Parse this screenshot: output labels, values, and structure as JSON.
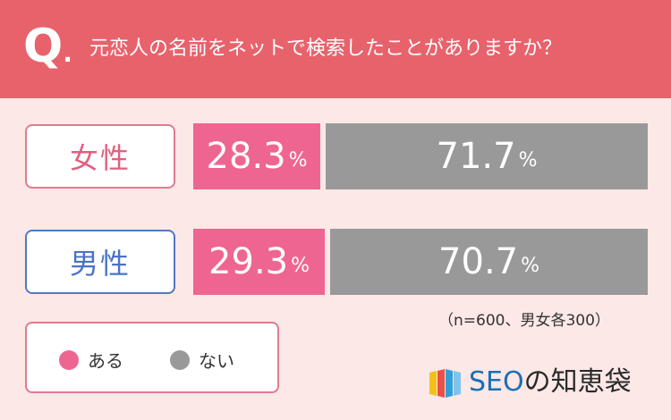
{
  "header": {
    "q_letter": "Q",
    "q_dot": ".",
    "question": "元恋人の名前をネットで検索したことがありますか？"
  },
  "chart_data": {
    "type": "bar",
    "orientation": "horizontal",
    "stacked": true,
    "normalized": true,
    "categories": [
      "女性",
      "男性"
    ],
    "series": [
      {
        "name": "ある",
        "values": [
          28.3,
          29.3
        ]
      },
      {
        "name": "ない",
        "values": [
          71.7,
          70.7
        ]
      }
    ],
    "value_labels": [
      [
        "28.3",
        "71.7"
      ],
      [
        "29.3",
        "70.7"
      ]
    ],
    "unit": "%",
    "xlim": [
      0,
      100
    ],
    "note": "（n=600、男女各300）",
    "legend_position": "bottom-left",
    "colors": {
      "ある": "#ef6591",
      "ない": "#999999",
      "female_border": "#e07a93",
      "female_text": "#e0607f",
      "male_border": "#5277c3",
      "male_text": "#4a73c4"
    }
  },
  "legend": {
    "items": [
      {
        "label": "ある",
        "color": "#ef6591"
      },
      {
        "label": "ない",
        "color": "#999999"
      }
    ]
  },
  "brand": {
    "logo_latin": "SEO",
    "logo_kanji": "の知恵袋"
  }
}
